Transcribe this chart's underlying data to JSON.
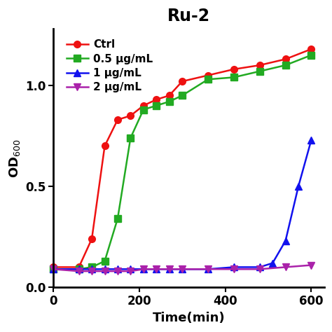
{
  "title": "Ru-2",
  "xlabel": "Time(min)",
  "ylabel": "OD$_{600}$",
  "xlim": [
    0,
    630
  ],
  "ylim": [
    0.0,
    1.28
  ],
  "xticks": [
    0,
    200,
    400,
    600
  ],
  "yticks": [
    0.0,
    0.5,
    1.0
  ],
  "series": [
    {
      "label": "Ctrl",
      "color": "#EE1111",
      "marker": "o",
      "x": [
        0,
        60,
        90,
        120,
        150,
        180,
        210,
        240,
        270,
        300,
        360,
        420,
        480,
        540,
        600
      ],
      "y": [
        0.1,
        0.1,
        0.24,
        0.7,
        0.83,
        0.85,
        0.9,
        0.93,
        0.95,
        1.02,
        1.05,
        1.08,
        1.1,
        1.13,
        1.18
      ]
    },
    {
      "label": "0.5 μg/mL",
      "color": "#22AA22",
      "marker": "s",
      "x": [
        0,
        60,
        90,
        120,
        150,
        180,
        210,
        240,
        270,
        300,
        360,
        420,
        480,
        540,
        600
      ],
      "y": [
        0.09,
        0.09,
        0.1,
        0.13,
        0.34,
        0.74,
        0.88,
        0.9,
        0.92,
        0.95,
        1.03,
        1.04,
        1.07,
        1.1,
        1.15
      ]
    },
    {
      "label": "1 μg/mL",
      "color": "#1111EE",
      "marker": "^",
      "x": [
        0,
        60,
        90,
        120,
        150,
        180,
        210,
        240,
        270,
        300,
        360,
        420,
        480,
        510,
        540,
        570,
        600
      ],
      "y": [
        0.09,
        0.09,
        0.09,
        0.09,
        0.09,
        0.09,
        0.09,
        0.09,
        0.09,
        0.09,
        0.09,
        0.1,
        0.1,
        0.12,
        0.23,
        0.5,
        0.73
      ]
    },
    {
      "label": "2 μg/mL",
      "color": "#AA22AA",
      "marker": "v",
      "x": [
        0,
        60,
        90,
        120,
        150,
        180,
        210,
        240,
        270,
        300,
        360,
        420,
        480,
        540,
        600
      ],
      "y": [
        0.09,
        0.08,
        0.08,
        0.08,
        0.08,
        0.08,
        0.09,
        0.09,
        0.09,
        0.09,
        0.09,
        0.09,
        0.09,
        0.1,
        0.11
      ]
    }
  ],
  "background_color": "#ffffff",
  "title_fontsize": 17,
  "label_fontsize": 13,
  "tick_fontsize": 12,
  "legend_fontsize": 11,
  "linewidth": 1.8,
  "markersize": 7
}
